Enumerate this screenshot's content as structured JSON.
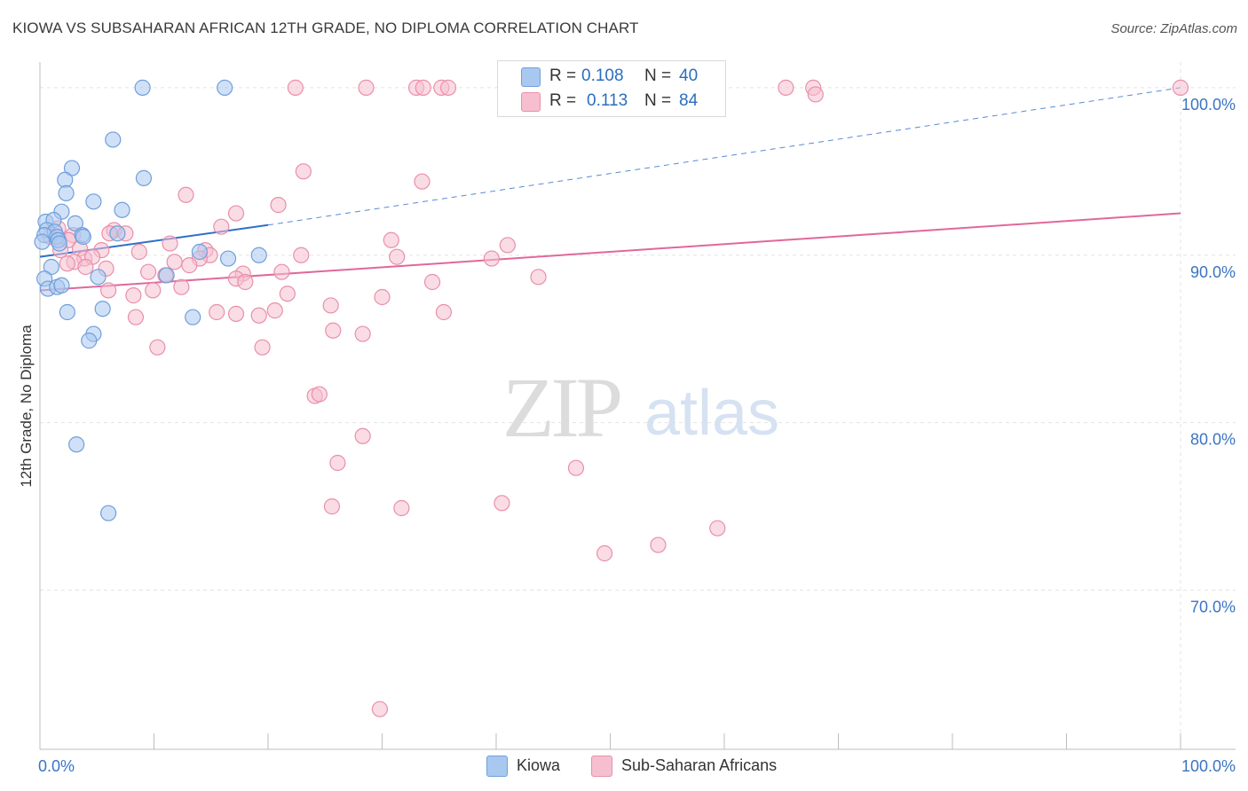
{
  "header": {
    "title": "KIOWA VS SUBSAHARAN AFRICAN 12TH GRADE, NO DIPLOMA CORRELATION CHART",
    "source": "Source: ZipAtlas.com"
  },
  "watermark": {
    "zip": "ZIP",
    "atlas": "atlas"
  },
  "legend_top": {
    "rows": [
      {
        "r_label": "R =",
        "r_value": "0.108",
        "n_label": "N =",
        "n_value": "40"
      },
      {
        "r_label": "R =",
        "r_value": "0.113",
        "n_label": "N =",
        "n_value": "84"
      }
    ]
  },
  "legend_bottom": {
    "kiowa": "Kiowa",
    "subsaharan": "Sub-Saharan Africans"
  },
  "colors": {
    "kiowa_fill": "#a9c8f0",
    "kiowa_stroke": "#6f9fdc",
    "kiowa_line": "#2e6fc9",
    "ssa_fill": "#f6bfd0",
    "ssa_stroke": "#e98fab",
    "ssa_line": "#e0689a",
    "tick_text": "#3b74c4",
    "grid": "#e3e3e3"
  },
  "chart_data": {
    "type": "scatter",
    "title": "KIOWA VS SUBSAHARAN AFRICAN 12TH GRADE, NO DIPLOMA CORRELATION CHART",
    "xlabel": "",
    "ylabel": "12th Grade, No Diploma",
    "xlim": [
      0,
      100
    ],
    "ylim": [
      60.5,
      101
    ],
    "x_ticks_labels": [
      "0.0%",
      "100.0%"
    ],
    "y_ticks": [
      70,
      80,
      90,
      100
    ],
    "y_ticks_labels": [
      "70.0%",
      "80.0%",
      "90.0%",
      "100.0%"
    ],
    "grid": true,
    "legend_position": "top-center",
    "series": [
      {
        "name": "Kiowa",
        "points": [
          [
            9.0,
            100
          ],
          [
            16.2,
            100
          ],
          [
            6.4,
            96.9
          ],
          [
            2.8,
            95.2
          ],
          [
            9.1,
            94.6
          ],
          [
            2.2,
            94.5
          ],
          [
            2.3,
            93.7
          ],
          [
            4.7,
            93.2
          ],
          [
            1.9,
            92.6
          ],
          [
            7.2,
            92.7
          ],
          [
            0.5,
            92.0
          ],
          [
            1.2,
            92.1
          ],
          [
            3.1,
            91.9
          ],
          [
            0.6,
            91.5
          ],
          [
            1.3,
            91.4
          ],
          [
            0.4,
            91.2
          ],
          [
            1.5,
            91.1
          ],
          [
            3.7,
            91.2
          ],
          [
            6.8,
            91.3
          ],
          [
            3.8,
            91.1
          ],
          [
            1.6,
            90.9
          ],
          [
            0.2,
            90.8
          ],
          [
            1.7,
            90.7
          ],
          [
            14.0,
            90.2
          ],
          [
            16.5,
            89.8
          ],
          [
            19.2,
            90.0
          ],
          [
            1.0,
            89.3
          ],
          [
            0.4,
            88.6
          ],
          [
            5.1,
            88.7
          ],
          [
            11.1,
            88.8
          ],
          [
            0.7,
            88.0
          ],
          [
            1.5,
            88.1
          ],
          [
            1.9,
            88.2
          ],
          [
            5.5,
            86.8
          ],
          [
            2.4,
            86.6
          ],
          [
            13.4,
            86.3
          ],
          [
            4.7,
            85.3
          ],
          [
            4.3,
            84.9
          ],
          [
            3.2,
            78.7
          ],
          [
            6.0,
            74.6
          ]
        ]
      },
      {
        "name": "Sub-Saharan Africans",
        "points": [
          [
            22.4,
            100
          ],
          [
            28.6,
            100
          ],
          [
            33.0,
            100
          ],
          [
            33.6,
            100
          ],
          [
            35.2,
            100
          ],
          [
            35.8,
            100
          ],
          [
            47.5,
            100
          ],
          [
            55.1,
            100
          ],
          [
            65.4,
            100
          ],
          [
            67.8,
            100
          ],
          [
            100,
            100
          ],
          [
            23.1,
            95.0
          ],
          [
            33.5,
            94.4
          ],
          [
            12.8,
            93.6
          ],
          [
            20.9,
            93.0
          ],
          [
            17.2,
            92.5
          ],
          [
            1.6,
            91.6
          ],
          [
            2.9,
            91.2
          ],
          [
            6.5,
            91.5
          ],
          [
            7.5,
            91.3
          ],
          [
            15.9,
            91.7
          ],
          [
            0.9,
            91.1
          ],
          [
            2.5,
            90.9
          ],
          [
            6.1,
            91.3
          ],
          [
            30.8,
            90.9
          ],
          [
            41.0,
            90.6
          ],
          [
            11.4,
            90.7
          ],
          [
            1.8,
            90.3
          ],
          [
            3.5,
            90.4
          ],
          [
            5.4,
            90.3
          ],
          [
            8.7,
            90.2
          ],
          [
            14.5,
            90.3
          ],
          [
            14.9,
            90.0
          ],
          [
            3.9,
            89.8
          ],
          [
            4.6,
            89.9
          ],
          [
            14.0,
            89.8
          ],
          [
            22.9,
            90.0
          ],
          [
            31.3,
            89.9
          ],
          [
            39.6,
            89.8
          ],
          [
            3.0,
            89.6
          ],
          [
            2.4,
            89.5
          ],
          [
            11.8,
            89.6
          ],
          [
            13.1,
            89.4
          ],
          [
            4.0,
            89.3
          ],
          [
            5.8,
            89.2
          ],
          [
            9.5,
            89.0
          ],
          [
            11.0,
            88.8
          ],
          [
            17.8,
            88.9
          ],
          [
            21.2,
            89.0
          ],
          [
            17.2,
            88.6
          ],
          [
            18.0,
            88.4
          ],
          [
            34.4,
            88.4
          ],
          [
            43.7,
            88.7
          ],
          [
            6.0,
            87.9
          ],
          [
            8.2,
            87.6
          ],
          [
            9.9,
            87.9
          ],
          [
            12.4,
            88.1
          ],
          [
            21.7,
            87.7
          ],
          [
            30.0,
            87.5
          ],
          [
            25.5,
            87.0
          ],
          [
            15.5,
            86.6
          ],
          [
            17.2,
            86.5
          ],
          [
            19.2,
            86.4
          ],
          [
            20.6,
            86.7
          ],
          [
            35.4,
            86.6
          ],
          [
            8.4,
            86.3
          ],
          [
            25.7,
            85.5
          ],
          [
            28.3,
            85.3
          ],
          [
            10.3,
            84.5
          ],
          [
            19.5,
            84.5
          ],
          [
            24.1,
            81.6
          ],
          [
            24.5,
            81.7
          ],
          [
            28.3,
            79.2
          ],
          [
            26.1,
            77.6
          ],
          [
            47.0,
            77.3
          ],
          [
            25.6,
            75.0
          ],
          [
            31.7,
            74.9
          ],
          [
            40.5,
            75.2
          ],
          [
            59.4,
            73.7
          ],
          [
            49.5,
            72.2
          ],
          [
            54.2,
            72.7
          ],
          [
            29.8,
            62.9
          ],
          [
            68.0,
            99.6
          ],
          [
            54.3,
            99.2
          ]
        ]
      }
    ],
    "trend_lines": [
      {
        "series": "Kiowa",
        "solid_from": [
          0,
          89.9
        ],
        "solid_to": [
          20,
          91.8
        ],
        "dashed_to": [
          100,
          100
        ]
      },
      {
        "series": "Sub-Saharan Africans",
        "from": [
          0,
          87.9
        ],
        "to": [
          100,
          92.5
        ]
      }
    ]
  }
}
